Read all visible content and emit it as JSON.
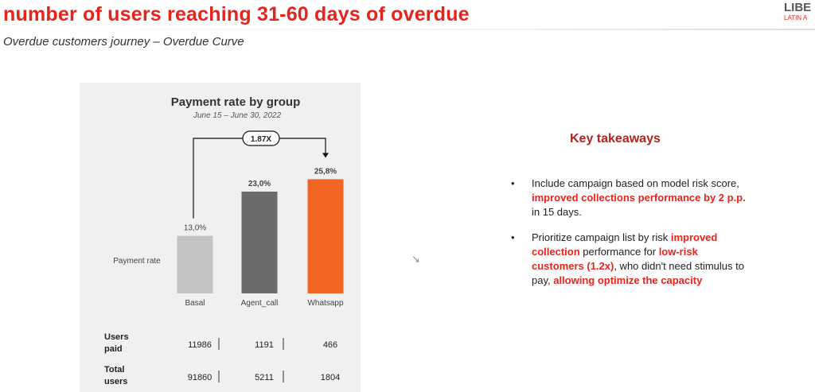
{
  "header": {
    "title": "number of users reaching 31-60 days of overdue",
    "subtitle": "Overdue customers journey – Overdue Curve",
    "logo_text": "LIBE",
    "logo_subtext": "LATIN A"
  },
  "chart_data": {
    "type": "bar",
    "title": "Payment rate by group",
    "subtitle": "June 15 – June 30, 2022",
    "ylabel": "Payment rate",
    "categories": [
      "Basal",
      "Agent_call",
      "Whatsapp"
    ],
    "values": [
      13.0,
      23.0,
      25.8
    ],
    "value_labels": [
      "13,0%",
      "23,0%",
      "25,8%"
    ],
    "colors": [
      "#c3c3c3",
      "#6b6b6b",
      "#f26522"
    ],
    "ylim": [
      0,
      30
    ],
    "annotation": "1.87X",
    "table": {
      "rows": [
        {
          "label": [
            "Users",
            "paid"
          ],
          "values": [
            "11986",
            "1191",
            "466"
          ]
        },
        {
          "label": [
            "Total",
            "users"
          ],
          "values": [
            "91860",
            "5211",
            "1804"
          ]
        }
      ]
    }
  },
  "takeaways": {
    "title": "Key takeaways",
    "bullet_char": "•",
    "bullets": [
      {
        "segments": [
          {
            "text": "Include campaign based on model risk score, ",
            "highlight": false
          },
          {
            "text": "improved collections performance by 2 p.p.",
            "highlight": true
          },
          {
            "text": " in 15 days.",
            "highlight": false
          }
        ]
      },
      {
        "segments": [
          {
            "text": "Prioritize campaign list by risk ",
            "highlight": false
          },
          {
            "text": "improved collection",
            "highlight": true
          },
          {
            "text": " performance for ",
            "highlight": false
          },
          {
            "text": "low-risk customers (1.2x)",
            "highlight": true
          },
          {
            "text": ", who didn't need  stimulus to pay, ",
            "highlight": false
          },
          {
            "text": "allowing optimize the capacity",
            "highlight": true
          }
        ]
      }
    ]
  },
  "cursor_glyph": "↘"
}
